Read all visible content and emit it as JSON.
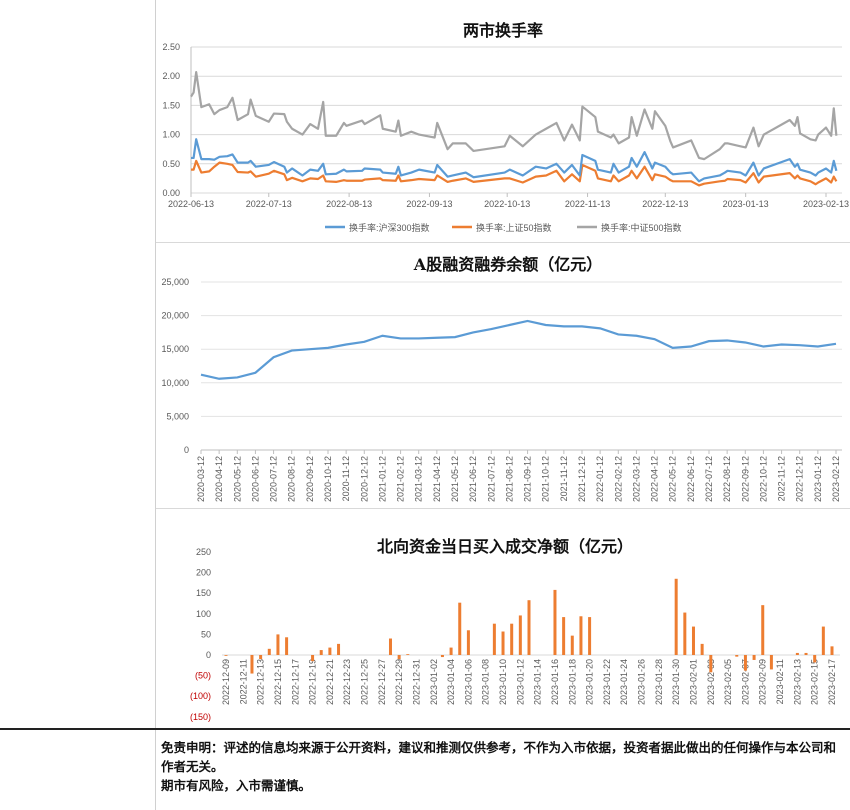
{
  "charts_meta": {
    "line_colors": {
      "hs300": "#5b9bd5",
      "sz50": "#ed7d31",
      "zz500": "#a5a5a5"
    },
    "bar_color": "#ed7d31",
    "negative_label_color": "#c00000"
  },
  "chart_data": [
    {
      "type": "line",
      "title": "两市换手率",
      "ylim": [
        0,
        2.5
      ],
      "yticks": [
        "0.00",
        "0.50",
        "1.00",
        "1.50",
        "2.00",
        "2.50"
      ],
      "xticks": [
        "2022-06-13",
        "2022-07-13",
        "2022-08-13",
        "2022-09-13",
        "2022-10-13",
        "2022-11-13",
        "2022-12-13",
        "2023-01-13",
        "2023-02-13"
      ],
      "grid": true,
      "legend": "bottom",
      "x": [
        "2022-06-13",
        "2022-06-14",
        "2022-06-15",
        "2022-06-17",
        "2022-06-20",
        "2022-06-22",
        "2022-06-24",
        "2022-06-27",
        "2022-06-29",
        "2022-07-01",
        "2022-07-05",
        "2022-07-06",
        "2022-07-08",
        "2022-07-13",
        "2022-07-15",
        "2022-07-19",
        "2022-07-20",
        "2022-07-22",
        "2022-07-26",
        "2022-07-29",
        "2022-08-01",
        "2022-08-03",
        "2022-08-04",
        "2022-08-08",
        "2022-08-11",
        "2022-08-12",
        "2022-08-18",
        "2022-08-19",
        "2022-08-25",
        "2022-08-26",
        "2022-08-31",
        "2022-09-01",
        "2022-09-02",
        "2022-09-06",
        "2022-09-09",
        "2022-09-15",
        "2022-09-16",
        "2022-09-20",
        "2022-09-22",
        "2022-09-27",
        "2022-09-30",
        "2022-10-12",
        "2022-10-14",
        "2022-10-19",
        "2022-10-24",
        "2022-10-28",
        "2022-11-01",
        "2022-11-04",
        "2022-11-07",
        "2022-11-10",
        "2022-11-11",
        "2022-11-16",
        "2022-11-17",
        "2022-11-22",
        "2022-11-23",
        "2022-11-25",
        "2022-11-29",
        "2022-11-30",
        "2022-12-02",
        "2022-12-05",
        "2022-12-08",
        "2022-12-09",
        "2022-12-13",
        "2022-12-15",
        "2022-12-16",
        "2022-12-23",
        "2022-12-26",
        "2022-12-28",
        "2023-01-03",
        "2023-01-05",
        "2023-01-06",
        "2023-01-11",
        "2023-01-13",
        "2023-01-16",
        "2023-01-18",
        "2023-01-20",
        "2023-01-30",
        "2023-02-01",
        "2023-02-02",
        "2023-02-03",
        "2023-02-07",
        "2023-02-09",
        "2023-02-10",
        "2023-02-13",
        "2023-02-15",
        "2023-02-16",
        "2023-02-17"
      ],
      "series": [
        {
          "name": "换手率:沪深300指数",
          "key": "hs300",
          "values": [
            0.6,
            0.6,
            0.92,
            0.58,
            0.58,
            0.57,
            0.62,
            0.63,
            0.66,
            0.52,
            0.52,
            0.55,
            0.45,
            0.48,
            0.53,
            0.45,
            0.35,
            0.42,
            0.3,
            0.4,
            0.38,
            0.5,
            0.32,
            0.33,
            0.4,
            0.37,
            0.38,
            0.42,
            0.4,
            0.35,
            0.33,
            0.45,
            0.3,
            0.35,
            0.4,
            0.35,
            0.48,
            0.28,
            0.3,
            0.35,
            0.27,
            0.35,
            0.4,
            0.3,
            0.45,
            0.42,
            0.5,
            0.35,
            0.48,
            0.3,
            0.65,
            0.55,
            0.4,
            0.35,
            0.5,
            0.35,
            0.45,
            0.6,
            0.45,
            0.7,
            0.42,
            0.52,
            0.45,
            0.35,
            0.32,
            0.35,
            0.2,
            0.25,
            0.3,
            0.35,
            0.38,
            0.35,
            0.3,
            0.52,
            0.3,
            0.42,
            0.58,
            0.45,
            0.5,
            0.4,
            0.35,
            0.3,
            0.35,
            0.42,
            0.35,
            0.55,
            0.38
          ]
        },
        {
          "name": "换手率:上证50指数",
          "key": "sz50",
          "values": [
            0.4,
            0.4,
            0.55,
            0.35,
            0.37,
            0.45,
            0.52,
            0.5,
            0.48,
            0.36,
            0.35,
            0.37,
            0.28,
            0.33,
            0.38,
            0.32,
            0.22,
            0.26,
            0.2,
            0.25,
            0.24,
            0.3,
            0.2,
            0.19,
            0.22,
            0.21,
            0.21,
            0.23,
            0.25,
            0.22,
            0.21,
            0.3,
            0.2,
            0.22,
            0.24,
            0.22,
            0.3,
            0.19,
            0.21,
            0.25,
            0.19,
            0.25,
            0.25,
            0.18,
            0.28,
            0.3,
            0.38,
            0.2,
            0.32,
            0.2,
            0.48,
            0.38,
            0.25,
            0.2,
            0.3,
            0.2,
            0.3,
            0.38,
            0.25,
            0.45,
            0.22,
            0.32,
            0.28,
            0.22,
            0.2,
            0.2,
            0.13,
            0.16,
            0.2,
            0.21,
            0.24,
            0.22,
            0.18,
            0.34,
            0.18,
            0.28,
            0.34,
            0.25,
            0.3,
            0.25,
            0.2,
            0.15,
            0.18,
            0.25,
            0.18,
            0.28,
            0.2
          ]
        },
        {
          "name": "换手率:中证500指数",
          "key": "zz500",
          "values": [
            1.65,
            1.72,
            2.07,
            1.47,
            1.52,
            1.35,
            1.42,
            1.47,
            1.63,
            1.25,
            1.35,
            1.6,
            1.32,
            1.22,
            1.36,
            1.35,
            1.22,
            1.1,
            1.0,
            1.18,
            1.1,
            1.56,
            0.98,
            0.98,
            1.2,
            1.15,
            1.24,
            1.18,
            1.33,
            1.1,
            1.05,
            1.24,
            0.98,
            1.05,
            1.0,
            0.95,
            1.2,
            0.75,
            0.85,
            0.85,
            0.72,
            0.8,
            0.98,
            0.8,
            1.0,
            1.1,
            1.2,
            0.9,
            1.17,
            0.9,
            1.48,
            1.3,
            1.05,
            0.95,
            1.0,
            0.85,
            0.95,
            1.3,
            0.98,
            1.43,
            1.1,
            1.4,
            1.15,
            0.88,
            0.78,
            0.9,
            0.6,
            0.58,
            0.75,
            0.85,
            0.85,
            0.8,
            0.78,
            1.12,
            0.8,
            1.0,
            1.25,
            1.15,
            1.3,
            1.02,
            0.92,
            0.9,
            1.0,
            1.12,
            0.98,
            1.45,
            0.98
          ]
        }
      ]
    },
    {
      "type": "line",
      "title": "A股融资融券余额（亿元）",
      "ylim": [
        0,
        25000
      ],
      "yticks": [
        "0",
        "5,000",
        "10,000",
        "15,000",
        "20,000",
        "25,000"
      ],
      "grid": true,
      "xticks": [
        "2020-03-12",
        "2020-04-12",
        "2020-05-12",
        "2020-06-12",
        "2020-07-12",
        "2020-08-12",
        "2020-09-12",
        "2020-10-12",
        "2020-11-12",
        "2020-12-12",
        "2021-01-12",
        "2021-02-12",
        "2021-03-12",
        "2021-04-12",
        "2021-05-12",
        "2021-06-12",
        "2021-07-12",
        "2021-08-12",
        "2021-09-12",
        "2021-10-12",
        "2021-11-12",
        "2021-12-12",
        "2022-01-12",
        "2022-02-12",
        "2022-03-12",
        "2022-04-12",
        "2022-05-12",
        "2022-06-12",
        "2022-07-12",
        "2022-08-12",
        "2022-09-12",
        "2022-10-12",
        "2022-11-12",
        "2022-12-12",
        "2023-01-12",
        "2023-02-12"
      ],
      "series": [
        {
          "values": [
            11200,
            10600,
            10800,
            11500,
            13800,
            14800,
            15000,
            15200,
            15700,
            16100,
            17000,
            16600,
            16600,
            16700,
            16800,
            17500,
            18000,
            18600,
            19200,
            18600,
            18400,
            18400,
            18100,
            17200,
            17000,
            16500,
            15200,
            15400,
            16200,
            16300,
            16000,
            15400,
            15700,
            15600,
            15400,
            15800
          ]
        }
      ]
    },
    {
      "type": "bar",
      "title": "北向资金当日买入成交净额（亿元）",
      "ylim": [
        -150,
        250
      ],
      "yticks": [
        "(150)",
        "(100)",
        "(50)",
        "0",
        "50",
        "100",
        "150",
        "200",
        "250"
      ],
      "xticks": [
        "2022-12-09",
        "2022-12-11",
        "2022-12-13",
        "2022-12-15",
        "2022-12-17",
        "2022-12-19",
        "2022-12-21",
        "2022-12-23",
        "2022-12-25",
        "2022-12-27",
        "2022-12-29",
        "2022-12-31",
        "2023-01-02",
        "2023-01-04",
        "2023-01-06",
        "2023-01-08",
        "2023-01-10",
        "2023-01-12",
        "2023-01-14",
        "2023-01-16",
        "2023-01-18",
        "2023-01-20",
        "2023-01-22",
        "2023-01-24",
        "2023-01-26",
        "2023-01-28",
        "2023-01-30",
        "2023-02-01",
        "2023-02-03",
        "2023-02-05",
        "2023-02-07",
        "2023-02-09",
        "2023-02-11",
        "2023-02-13",
        "2023-02-15",
        "2023-02-17"
      ],
      "x": [
        "2022-12-09",
        "2022-12-12",
        "2022-12-13",
        "2022-12-14",
        "2022-12-15",
        "2022-12-16",
        "2022-12-19",
        "2022-12-20",
        "2022-12-21",
        "2022-12-22",
        "2022-12-28",
        "2022-12-29",
        "2022-12-30",
        "2023-01-03",
        "2023-01-04",
        "2023-01-05",
        "2023-01-06",
        "2023-01-09",
        "2023-01-10",
        "2023-01-11",
        "2023-01-12",
        "2023-01-13",
        "2023-01-16",
        "2023-01-17",
        "2023-01-18",
        "2023-01-19",
        "2023-01-20",
        "2023-01-30",
        "2023-01-31",
        "2023-02-01",
        "2023-02-02",
        "2023-02-03",
        "2023-02-06",
        "2023-02-07",
        "2023-02-08",
        "2023-02-09",
        "2023-02-10",
        "2023-02-13",
        "2023-02-14",
        "2023-02-15",
        "2023-02-16",
        "2023-02-17"
      ],
      "values": [
        -2,
        -45,
        -10,
        15,
        50,
        43,
        -15,
        12,
        18,
        27,
        40,
        -10,
        2,
        -5,
        18,
        127,
        60,
        76,
        57,
        76,
        96,
        133,
        158,
        92,
        47,
        94,
        92,
        185,
        103,
        69,
        27,
        -42,
        -4,
        -38,
        -12,
        121,
        -35,
        5,
        5,
        -18,
        69,
        21
      ]
    }
  ],
  "disclaimer": {
    "line1": "免责申明：评述的信息均来源于公开资料，建议和推测仅供参考，不作为入市依据，投资者据此做出的任何操作与本公司和作者无关。",
    "line2": "期市有风险，入市需谨慎。"
  }
}
